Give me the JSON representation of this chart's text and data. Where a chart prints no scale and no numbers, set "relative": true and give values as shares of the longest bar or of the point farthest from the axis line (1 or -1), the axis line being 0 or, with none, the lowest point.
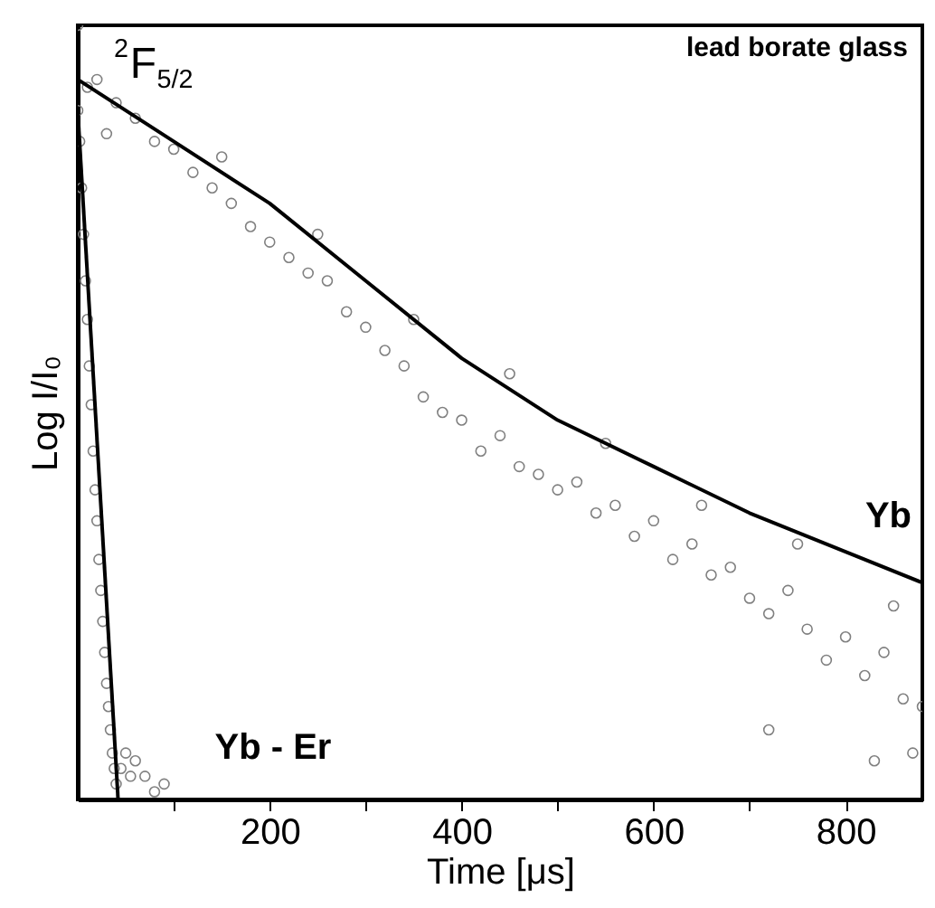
{
  "chart_data": {
    "type": "scatter",
    "relative": true,
    "xlabel": "Time [μs]",
    "ylabel": "Log I/I₀",
    "tick_labels": "x",
    "marker": "circle",
    "grid": false,
    "annotations": [
      "$^{2}$F$_{5/2}$",
      "lead borate glass"
    ],
    "xlim": [
      0,
      880
    ],
    "xticks": [
      {
        "value": 100,
        "label": null
      },
      200,
      {
        "value": 300,
        "label": null
      },
      400,
      {
        "value": 500,
        "label": null
      },
      600,
      {
        "value": 700,
        "label": null
      },
      800
    ],
    "series": [
      {
        "name": "Yb",
        "color": "#808080",
        "x": [
          0,
          10,
          20,
          30,
          40,
          60,
          80,
          100,
          120,
          140,
          150,
          160,
          180,
          200,
          220,
          240,
          250,
          260,
          280,
          300,
          320,
          340,
          350,
          360,
          380,
          400,
          420,
          440,
          450,
          460,
          480,
          500,
          520,
          540,
          550,
          560,
          580,
          600,
          620,
          640,
          650,
          660,
          680,
          700,
          720,
          720,
          740,
          750,
          760,
          780,
          800,
          820,
          830,
          840,
          850,
          860,
          870,
          880
        ],
        "values": [
          1.0,
          0.92,
          0.93,
          0.86,
          0.9,
          0.88,
          0.85,
          0.84,
          0.81,
          0.79,
          0.83,
          0.77,
          0.74,
          0.72,
          0.7,
          0.68,
          0.73,
          0.67,
          0.63,
          0.61,
          0.58,
          0.56,
          0.62,
          0.52,
          0.5,
          0.49,
          0.45,
          0.47,
          0.55,
          0.43,
          0.42,
          0.4,
          0.41,
          0.37,
          0.46,
          0.38,
          0.34,
          0.36,
          0.31,
          0.33,
          0.38,
          0.29,
          0.3,
          0.26,
          0.24,
          0.09,
          0.27,
          0.33,
          0.22,
          0.18,
          0.21,
          0.16,
          0.05,
          0.19,
          0.25,
          0.13,
          0.06,
          0.12
        ]
      },
      {
        "name": "Yb - Er",
        "color": "#808080",
        "x": [
          0,
          2,
          4,
          6,
          8,
          10,
          12,
          14,
          16,
          18,
          20,
          22,
          24,
          26,
          28,
          30,
          32,
          34,
          36,
          38,
          40,
          45,
          50,
          55,
          60,
          70,
          80,
          90
        ],
        "values": [
          0.89,
          0.85,
          0.79,
          0.73,
          0.67,
          0.62,
          0.56,
          0.51,
          0.45,
          0.4,
          0.36,
          0.31,
          0.27,
          0.23,
          0.19,
          0.15,
          0.12,
          0.09,
          0.06,
          0.04,
          0.02,
          0.04,
          0.06,
          0.03,
          0.05,
          0.03,
          0.01,
          0.02
        ]
      },
      {
        "type": "line",
        "marker": "none",
        "color": "#000000",
        "x": [
          0,
          100,
          200,
          300,
          400,
          500,
          600,
          700,
          800,
          880
        ],
        "values": [
          0.93,
          0.85,
          0.77,
          0.67,
          0.57,
          0.49,
          0.43,
          0.37,
          0.32,
          0.28
        ]
      },
      {
        "type": "line",
        "marker": "none",
        "color": "#000000",
        "x": [
          0,
          42
        ],
        "values": [
          0.89,
          0
        ]
      }
    ]
  }
}
